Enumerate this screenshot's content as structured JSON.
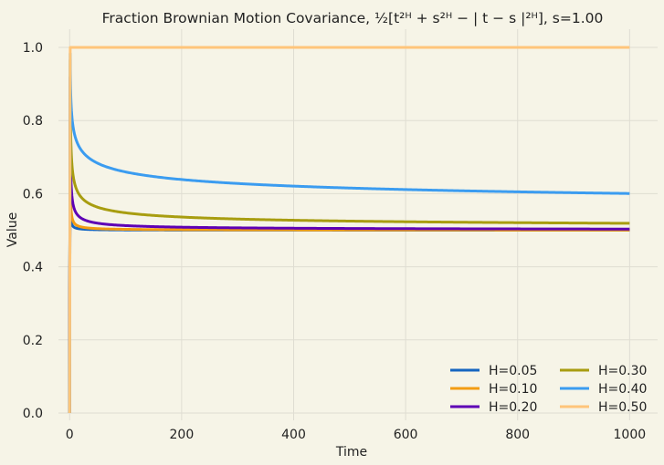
{
  "chart_data": {
    "type": "line",
    "title": "Fraction Brownian Motion Covariance, ½[t²ᴴ + s²ᴴ − | t − s |²ᴴ], s=1.00",
    "xlabel": "Time",
    "ylabel": "Value",
    "xlim": [
      -20,
      1050
    ],
    "ylim": [
      -0.02,
      1.05
    ],
    "grid": true,
    "legend_position": "bottom-right",
    "s": 1.0,
    "x_ticks": [
      {
        "value": 0,
        "label": "0"
      },
      {
        "value": 200,
        "label": "200"
      },
      {
        "value": 400,
        "label": "400"
      },
      {
        "value": 600,
        "label": "600"
      },
      {
        "value": 800,
        "label": "800"
      },
      {
        "value": 1000,
        "label": "1000"
      }
    ],
    "y_ticks": [
      {
        "value": 0.0,
        "label": "0.0"
      },
      {
        "value": 0.2,
        "label": "0.2"
      },
      {
        "value": 0.4,
        "label": "0.4"
      },
      {
        "value": 0.6,
        "label": "0.6"
      },
      {
        "value": 0.8,
        "label": "0.8"
      },
      {
        "value": 1.0,
        "label": "1.0"
      }
    ],
    "series": [
      {
        "name": "H=0.05",
        "H": 0.05,
        "color": "#1565c0"
      },
      {
        "name": "H=0.10",
        "H": 0.1,
        "color": "#f39c12"
      },
      {
        "name": "H=0.20",
        "H": 0.2,
        "color": "#5e00b5"
      },
      {
        "name": "H=0.30",
        "H": 0.3,
        "color": "#a89d10"
      },
      {
        "name": "H=0.40",
        "H": 0.4,
        "color": "#3b9cf0"
      },
      {
        "name": "H=0.50",
        "H": 0.5,
        "color": "#ffc57a"
      }
    ],
    "x_range": [
      0,
      1000
    ]
  },
  "colors": {
    "background": "#f6f4e7",
    "grid": "#dfddd2",
    "text": "#222222"
  }
}
